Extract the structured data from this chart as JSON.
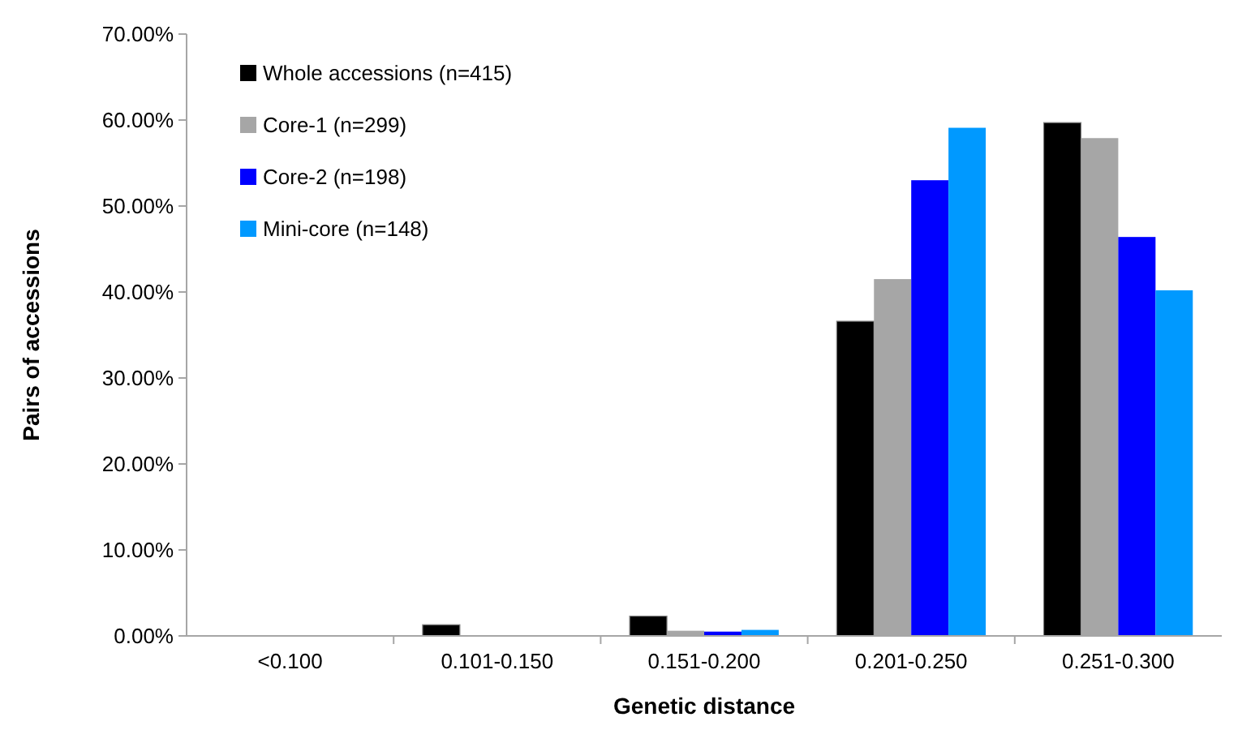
{
  "chart_data": {
    "type": "bar",
    "xlabel": "Genetic distance",
    "ylabel": "Pairs of accessions",
    "categories": [
      "<0.100",
      "0.101-0.150",
      "0.151-0.200",
      "0.201-0.250",
      "0.251-0.300"
    ],
    "series": [
      {
        "name": "Whole accessions (n=415)",
        "color": "#000000",
        "values": [
          0,
          1.3,
          2.3,
          36.6,
          59.7
        ]
      },
      {
        "name": "Core-1 (n=299)",
        "color": "#a6a6a6",
        "values": [
          0,
          null,
          0.6,
          41.5,
          57.9
        ]
      },
      {
        "name": "Core-2 (n=198)",
        "color": "#0000ff",
        "values": [
          0,
          null,
          0.5,
          53.0,
          46.4
        ]
      },
      {
        "name": "Mini-core (n=148)",
        "color": "#0099ff",
        "values": [
          0,
          null,
          0.7,
          59.1,
          40.2
        ]
      }
    ],
    "ylim": [
      0,
      70
    ],
    "yticks": [
      {
        "value": 0,
        "label": "0.00%"
      },
      {
        "value": 10,
        "label": "10.00%"
      },
      {
        "value": 20,
        "label": "20.00%"
      },
      {
        "value": 30,
        "label": "30.00%"
      },
      {
        "value": 40,
        "label": "40.00%"
      },
      {
        "value": 50,
        "label": "50.00%"
      },
      {
        "value": 60,
        "label": "60.00%"
      },
      {
        "value": 70,
        "label": "70.00%"
      }
    ],
    "grid": false,
    "legend": "top left"
  }
}
